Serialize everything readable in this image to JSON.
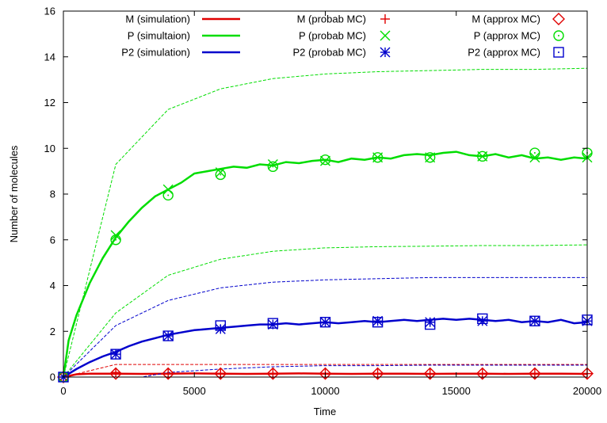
{
  "chart_data": {
    "type": "line",
    "xlabel": "Time",
    "ylabel": "Number of molecules",
    "xlim": [
      0,
      20000
    ],
    "ylim": [
      0,
      16
    ],
    "xticks": [
      0,
      5000,
      10000,
      15000,
      20000
    ],
    "yticks": [
      0,
      2,
      4,
      6,
      8,
      10,
      12,
      14,
      16
    ],
    "grid": false,
    "legend_position": "top",
    "colors": {
      "M": "#e00000",
      "P": "#00dd00",
      "P2": "#0000cc"
    },
    "series": [
      {
        "name": "M (simulation)",
        "group": "M",
        "kind": "line",
        "x": [
          0,
          500,
          1000,
          2000,
          3000,
          4000,
          5000,
          6000,
          7000,
          8000,
          9000,
          10000,
          11000,
          12000,
          13000,
          14000,
          15000,
          16000,
          17000,
          18000,
          19000,
          20000
        ],
        "y": [
          0,
          0.12,
          0.15,
          0.15,
          0.14,
          0.15,
          0.16,
          0.15,
          0.14,
          0.15,
          0.16,
          0.15,
          0.14,
          0.15,
          0.15,
          0.14,
          0.15,
          0.15,
          0.14,
          0.15,
          0.15,
          0.14
        ]
      },
      {
        "name": "P (simultaion)",
        "group": "P",
        "kind": "line",
        "x": [
          0,
          200,
          500,
          1000,
          1500,
          2000,
          2500,
          3000,
          3500,
          4000,
          4500,
          5000,
          5500,
          6000,
          6500,
          7000,
          7500,
          8000,
          8500,
          9000,
          9500,
          10000,
          10500,
          11000,
          11500,
          12000,
          12500,
          13000,
          13500,
          14000,
          14500,
          15000,
          15500,
          16000,
          16500,
          17000,
          17500,
          18000,
          18500,
          19000,
          19500,
          20000
        ],
        "y": [
          0,
          1.6,
          2.7,
          4.1,
          5.2,
          6.1,
          6.8,
          7.4,
          7.9,
          8.2,
          8.5,
          8.9,
          9.0,
          9.1,
          9.2,
          9.15,
          9.3,
          9.25,
          9.4,
          9.35,
          9.45,
          9.5,
          9.4,
          9.55,
          9.5,
          9.6,
          9.55,
          9.7,
          9.75,
          9.7,
          9.8,
          9.85,
          9.7,
          9.65,
          9.75,
          9.6,
          9.7,
          9.55,
          9.6,
          9.5,
          9.6,
          9.55
        ]
      },
      {
        "name": "P2 (simulation)",
        "group": "P2",
        "kind": "line",
        "x": [
          0,
          500,
          1000,
          1500,
          2000,
          2500,
          3000,
          3500,
          4000,
          4500,
          5000,
          5500,
          6000,
          6500,
          7000,
          7500,
          8000,
          8500,
          9000,
          9500,
          10000,
          10500,
          11000,
          11500,
          12000,
          12500,
          13000,
          13500,
          14000,
          14500,
          15000,
          15500,
          16000,
          16500,
          17000,
          17500,
          18000,
          18500,
          19000,
          19500,
          20000
        ],
        "y": [
          0,
          0.35,
          0.65,
          0.9,
          1.1,
          1.35,
          1.55,
          1.7,
          1.85,
          1.95,
          2.05,
          2.1,
          2.15,
          2.2,
          2.25,
          2.3,
          2.3,
          2.35,
          2.3,
          2.35,
          2.4,
          2.35,
          2.4,
          2.45,
          2.4,
          2.45,
          2.5,
          2.45,
          2.5,
          2.55,
          2.5,
          2.55,
          2.5,
          2.45,
          2.5,
          2.4,
          2.45,
          2.4,
          2.5,
          2.35,
          2.4
        ]
      },
      {
        "name": "M (probab MC)",
        "group": "M",
        "kind": "marker",
        "marker": "plus",
        "x": [
          0,
          2000,
          4000,
          6000,
          8000,
          10000,
          12000,
          14000,
          16000,
          18000,
          20000
        ],
        "y": [
          0,
          0.2,
          0.15,
          0.15,
          0.15,
          0.15,
          0.15,
          0.15,
          0.15,
          0.15,
          0.15
        ]
      },
      {
        "name": "P (probab MC)",
        "group": "P",
        "kind": "marker",
        "marker": "cross",
        "x": [
          0,
          2000,
          4000,
          6000,
          8000,
          10000,
          12000,
          14000,
          16000,
          18000,
          20000
        ],
        "y": [
          0,
          6.2,
          8.2,
          8.95,
          9.3,
          9.45,
          9.6,
          9.6,
          9.65,
          9.6,
          9.6
        ]
      },
      {
        "name": "P2 (probab MC)",
        "group": "P2",
        "kind": "marker",
        "marker": "star",
        "x": [
          0,
          2000,
          4000,
          6000,
          8000,
          10000,
          12000,
          14000,
          16000,
          18000,
          20000
        ],
        "y": [
          0,
          1.0,
          1.8,
          2.1,
          2.3,
          2.4,
          2.45,
          2.4,
          2.45,
          2.45,
          2.45
        ]
      },
      {
        "name": "M (approx MC)",
        "group": "M",
        "kind": "marker",
        "marker": "diamond",
        "x": [
          0,
          2000,
          4000,
          6000,
          8000,
          10000,
          12000,
          14000,
          16000,
          18000,
          20000
        ],
        "y": [
          0,
          0.15,
          0.15,
          0.15,
          0.15,
          0.15,
          0.15,
          0.15,
          0.15,
          0.15,
          0.15
        ]
      },
      {
        "name": "P (approx MC)",
        "group": "P",
        "kind": "marker",
        "marker": "circle",
        "x": [
          0,
          2000,
          4000,
          6000,
          8000,
          10000,
          12000,
          14000,
          16000,
          18000,
          20000
        ],
        "y": [
          0,
          6.0,
          7.95,
          8.85,
          9.2,
          9.5,
          9.6,
          9.6,
          9.65,
          9.8,
          9.8
        ]
      },
      {
        "name": "P2 (approx MC)",
        "group": "P2",
        "kind": "marker",
        "marker": "dotsquare",
        "x": [
          0,
          2000,
          4000,
          6000,
          8000,
          10000,
          12000,
          14000,
          16000,
          18000,
          20000
        ],
        "y": [
          0,
          1.0,
          1.8,
          2.25,
          2.35,
          2.4,
          2.4,
          2.3,
          2.55,
          2.45,
          2.5
        ]
      },
      {
        "group": "M",
        "kind": "dashed",
        "x": [
          0,
          2000,
          4000,
          6000,
          8000,
          10000,
          12000,
          14000,
          16000,
          18000,
          20000
        ],
        "y": [
          0,
          0.55,
          0.55,
          0.55,
          0.55,
          0.55,
          0.55,
          0.55,
          0.55,
          0.55,
          0.55
        ]
      },
      {
        "group": "M",
        "kind": "dashed",
        "x": [
          0,
          2000,
          4000,
          6000,
          8000,
          10000,
          12000,
          14000,
          16000,
          18000,
          20000
        ],
        "y": [
          0,
          -0.2,
          -0.22,
          -0.22,
          -0.22,
          -0.22,
          -0.22,
          -0.22,
          -0.22,
          -0.22,
          -0.22
        ]
      },
      {
        "group": "P",
        "kind": "dashed",
        "x": [
          0,
          2000,
          4000,
          6000,
          8000,
          10000,
          12000,
          14000,
          16000,
          18000,
          20000
        ],
        "y": [
          0,
          9.3,
          11.7,
          12.6,
          13.05,
          13.25,
          13.35,
          13.4,
          13.45,
          13.45,
          13.5
        ]
      },
      {
        "group": "P",
        "kind": "dashed",
        "x": [
          0,
          2000,
          4000,
          6000,
          8000,
          10000,
          12000,
          14000,
          16000,
          18000,
          20000
        ],
        "y": [
          0,
          2.8,
          4.45,
          5.15,
          5.5,
          5.65,
          5.7,
          5.72,
          5.75,
          5.75,
          5.78
        ]
      },
      {
        "group": "P2",
        "kind": "dashed",
        "x": [
          0,
          2000,
          4000,
          6000,
          8000,
          10000,
          12000,
          14000,
          16000,
          18000,
          20000
        ],
        "y": [
          0,
          2.25,
          3.35,
          3.9,
          4.15,
          4.25,
          4.3,
          4.35,
          4.35,
          4.35,
          4.35
        ]
      },
      {
        "group": "P2",
        "kind": "dashed",
        "x": [
          0,
          2000,
          4000,
          6000,
          8000,
          10000,
          12000,
          14000,
          16000,
          18000,
          20000
        ],
        "y": [
          0,
          -0.2,
          0.2,
          0.35,
          0.45,
          0.5,
          0.5,
          0.52,
          0.52,
          0.52,
          0.52
        ]
      }
    ]
  }
}
